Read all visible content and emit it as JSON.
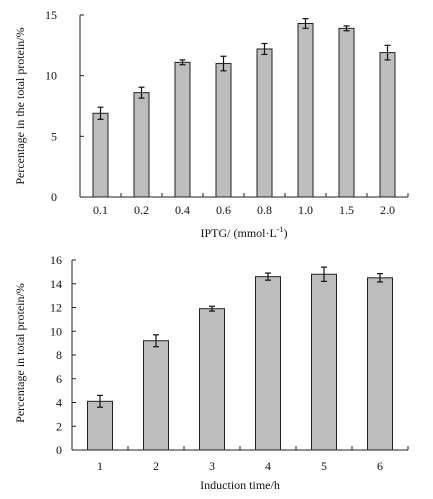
{
  "chart_data": [
    {
      "type": "bar",
      "title": "",
      "xlabel": "IPTG/ (mmol·L",
      "xlabel_superscript": "-1",
      "xlabel_suffix": ")",
      "ylabel": "Percentage in the total protein/%",
      "ylim": [
        0,
        15
      ],
      "yticks": [
        "0",
        "5",
        "10",
        "15"
      ],
      "categories": [
        "0.1",
        "0.2",
        "0.4",
        "0.6",
        "0.8",
        "1.0",
        "1.5",
        "2.0"
      ],
      "values": [
        6.9,
        8.6,
        11.1,
        11.0,
        12.2,
        14.3,
        13.9,
        11.9
      ],
      "errors": [
        0.5,
        0.45,
        0.2,
        0.6,
        0.45,
        0.4,
        0.2,
        0.6
      ],
      "grid": false,
      "legend": "none"
    },
    {
      "type": "bar",
      "title": "",
      "xlabel": "Induction time/h",
      "ylabel": "Percentage in total protein/%",
      "ylim": [
        0,
        16
      ],
      "yticks": [
        "0",
        "2",
        "4",
        "6",
        "8",
        "10",
        "12",
        "14",
        "16"
      ],
      "categories": [
        "1",
        "2",
        "3",
        "4",
        "5",
        "6"
      ],
      "values": [
        4.1,
        9.2,
        11.9,
        14.6,
        14.8,
        14.5
      ],
      "errors": [
        0.5,
        0.5,
        0.2,
        0.3,
        0.6,
        0.35
      ],
      "grid": false,
      "legend": "none"
    }
  ]
}
